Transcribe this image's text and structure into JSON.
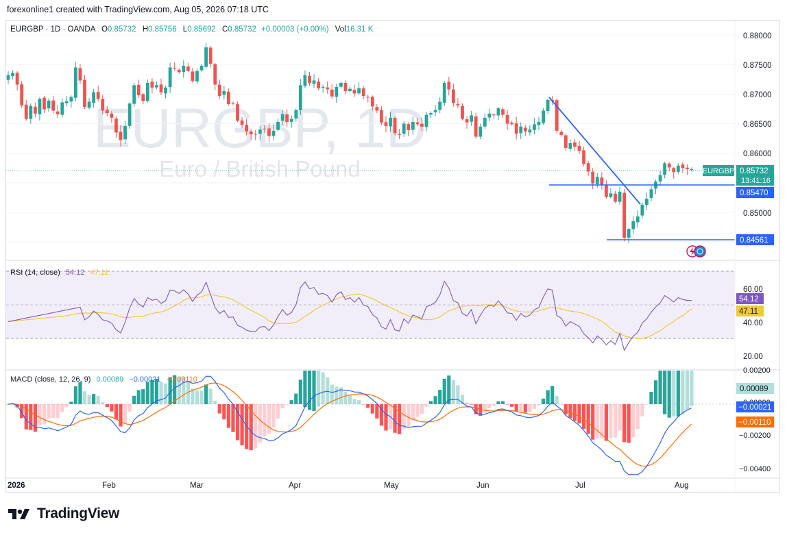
{
  "header": {
    "text": "forexonline1 created with TradingView.com, Aug 05, 2026 07:18 UTC"
  },
  "legend": {
    "symbol": "EURGBP · 1D · OANDA",
    "o_label": "O",
    "o": "0.85732",
    "h_label": "H",
    "h": "0.85756",
    "l_label": "L",
    "l": "0.85692",
    "c_label": "C",
    "c": "0.85732",
    "change": "+0.00003 (+0.00%)",
    "vol_label": "Vol",
    "vol": "16.31 K"
  },
  "watermark": {
    "title": "EURGBP, 1D",
    "subtitle": "Euro / British Pound"
  },
  "price_axis": {
    "ticks": [
      "0.88000",
      "0.87500",
      "0.87000",
      "0.86500",
      "0.86000",
      "0.85000"
    ]
  },
  "price_tags": {
    "symbol": "EURGBP",
    "last": "0.85732",
    "countdown": "13:41:16",
    "level1": "0.85470",
    "level2": "0.84561"
  },
  "rsi": {
    "legend_name": "RSI (14, close)",
    "value": "54.12",
    "ma": "47.11",
    "ticks": [
      "60.00",
      "40.00",
      "20.00"
    ]
  },
  "macd": {
    "legend_name": "MACD (close, 12, 26, 9)",
    "hist": "0.00089",
    "macd": "−0.00021",
    "signal": "−0.00110",
    "ticks": [
      "0.00200",
      "0.00000",
      "−0.00200",
      "−0.00400"
    ],
    "zero_tick_partial": "0.00000"
  },
  "time_axis": {
    "labels": [
      "2026",
      "Feb",
      "Mar",
      "Apr",
      "May",
      "Jun",
      "Jul",
      "Aug"
    ]
  },
  "footer": {
    "brand": "TradingView"
  },
  "colors": {
    "up": "#26a69a",
    "down": "#ef5350",
    "line": "#2962ff",
    "rsi": "#7e57c2",
    "rsi_ma": "#f0c93a",
    "macd_signal": "#ff6d00",
    "hist_up": "#26a69a",
    "hist_up_light": "#b2dfdb",
    "hist_down": "#ff5252",
    "hist_down_light": "#ffcdd2"
  },
  "chart_data": {
    "type": "candlestick",
    "symbol": "EURGBP",
    "timeframe": "1D",
    "ylim": [
      0.844,
      0.8815
    ],
    "x_labels": [
      "2026",
      "Feb",
      "Mar",
      "Apr",
      "May",
      "Jun",
      "Jul",
      "Aug"
    ],
    "closes": [
      0.8732,
      0.8736,
      0.8716,
      0.8681,
      0.8658,
      0.868,
      0.8667,
      0.8692,
      0.8674,
      0.8689,
      0.8672,
      0.8666,
      0.8686,
      0.8688,
      0.8695,
      0.8745,
      0.8723,
      0.8678,
      0.8687,
      0.8703,
      0.8692,
      0.8672,
      0.8668,
      0.866,
      0.8635,
      0.8622,
      0.8646,
      0.8684,
      0.8715,
      0.8698,
      0.8688,
      0.8719,
      0.8711,
      0.8715,
      0.8703,
      0.8711,
      0.8745,
      0.8743,
      0.8737,
      0.8748,
      0.8739,
      0.8722,
      0.8739,
      0.8748,
      0.8779,
      0.8751,
      0.8716,
      0.8697,
      0.8705,
      0.8683,
      0.8684,
      0.8655,
      0.8648,
      0.8637,
      0.8632,
      0.8632,
      0.864,
      0.8641,
      0.8629,
      0.8638,
      0.8653,
      0.8666,
      0.8653,
      0.8658,
      0.8673,
      0.8715,
      0.8732,
      0.8719,
      0.8723,
      0.871,
      0.8712,
      0.8708,
      0.8696,
      0.8712,
      0.8719,
      0.8705,
      0.8709,
      0.8701,
      0.871,
      0.8697,
      0.8694,
      0.8679,
      0.8672,
      0.8652,
      0.8646,
      0.866,
      0.8634,
      0.8631,
      0.865,
      0.8639,
      0.8653,
      0.8649,
      0.8645,
      0.8665,
      0.8668,
      0.8673,
      0.8687,
      0.8719,
      0.8708,
      0.8685,
      0.8681,
      0.8658,
      0.8652,
      0.8664,
      0.8628,
      0.8645,
      0.866,
      0.8667,
      0.8664,
      0.8676,
      0.8665,
      0.865,
      0.8649,
      0.8633,
      0.8645,
      0.8637,
      0.864,
      0.8649,
      0.8653,
      0.8672,
      0.869,
      0.8688,
      0.8638,
      0.8631,
      0.8609,
      0.8617,
      0.8611,
      0.8604,
      0.8582,
      0.8569,
      0.8549,
      0.856,
      0.8547,
      0.8526,
      0.8532,
      0.8518,
      0.8535,
      0.8457,
      0.8472,
      0.8485,
      0.8493,
      0.8513,
      0.8523,
      0.8539,
      0.8552,
      0.8563,
      0.8583,
      0.8576,
      0.8568,
      0.8579,
      0.8575,
      0.8573,
      0.8573
    ],
    "last_price": 0.85732,
    "horizontal_levels": [
      0.8547,
      0.84561
    ],
    "trendline": {
      "from": [
        0.8694,
        "Jun (late)"
      ],
      "to": [
        0.8516,
        "Jul (late)"
      ]
    },
    "indicators": {
      "rsi": {
        "period": 14,
        "value": 54.12,
        "ma": 47.11,
        "band": [
          30,
          70
        ],
        "ylim": [
          15,
          75
        ]
      },
      "macd": {
        "params": [
          12,
          26,
          9
        ],
        "histogram": 0.00089,
        "macd": -0.00021,
        "signal": -0.0011,
        "ylim": [
          -0.0043,
          0.0022
        ]
      }
    }
  }
}
